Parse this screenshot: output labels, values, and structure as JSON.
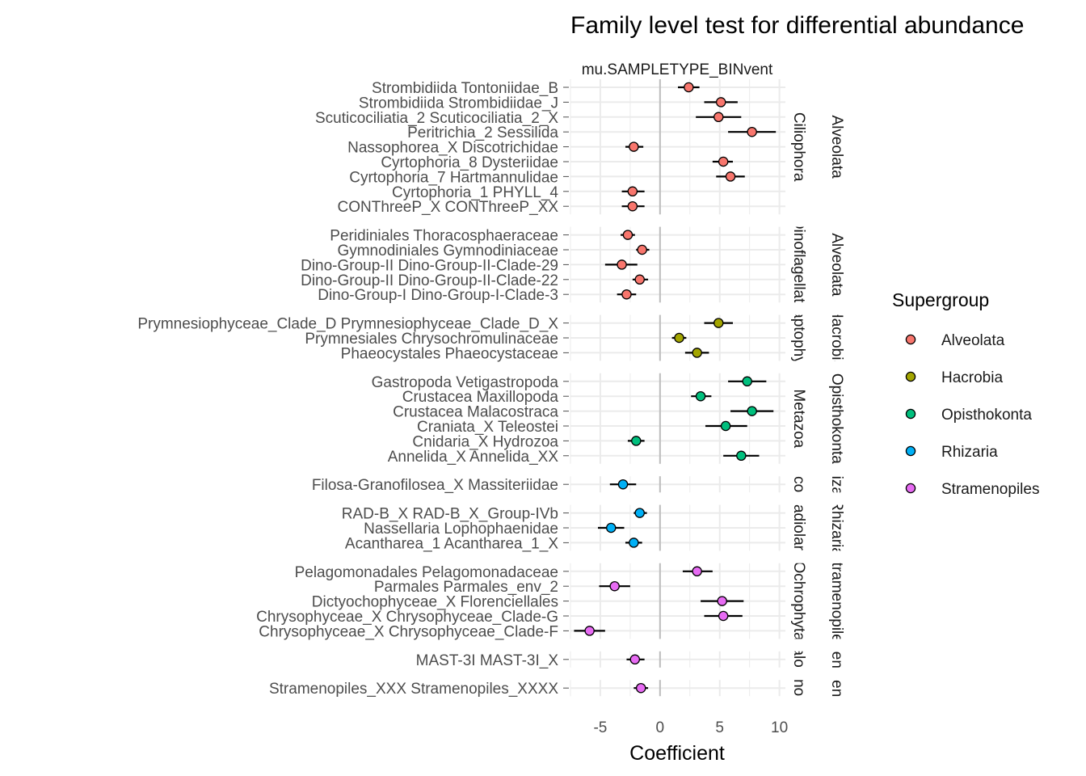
{
  "chart_data": {
    "type": "scatter",
    "subtype": "coefficient plot with error bars, faceted",
    "title": "Family level test for differential abundance",
    "facet_top_label": "mu.SAMPLETYPE_BINvent",
    "xlabel": "Coefficient",
    "ylabel": "",
    "xlim": [
      -7.5,
      10.5
    ],
    "xticks": [
      -5,
      0,
      5,
      10
    ],
    "vline_at": 0,
    "grid": true,
    "legend": {
      "title": "Supergroup",
      "placement": "right",
      "entries": [
        {
          "name": "Alveolata",
          "color": "#F8766D"
        },
        {
          "name": "Hacrobia",
          "color": "#A3A500"
        },
        {
          "name": "Opisthokonta",
          "color": "#00BF7D"
        },
        {
          "name": "Rhizaria",
          "color": "#00B0F6"
        },
        {
          "name": "Stramenopiles",
          "color": "#E76BF3"
        }
      ]
    },
    "panels": [
      {
        "division": "Ciliophora",
        "supergroup": "Alveolata",
        "rows": [
          {
            "label": "Strombidiida Tontoniidae_B",
            "coef": 2.4,
            "low": 1.5,
            "high": 3.3
          },
          {
            "label": "Strombidiida Strombidiidae_J",
            "coef": 5.1,
            "low": 3.7,
            "high": 6.5
          },
          {
            "label": "Scuticociliatia_2 Scuticociliatia_2_X",
            "coef": 4.9,
            "low": 3.0,
            "high": 6.8
          },
          {
            "label": "Peritrichia_2 Sessilida",
            "coef": 7.7,
            "low": 5.7,
            "high": 9.7
          },
          {
            "label": "Nassophorea_X Discotrichidae",
            "coef": -2.2,
            "low": -2.9,
            "high": -1.4
          },
          {
            "label": "Cyrtophoria_8 Dysteriidae",
            "coef": 5.3,
            "low": 4.4,
            "high": 6.1
          },
          {
            "label": "Cyrtophoria_7 Hartmannulidae",
            "coef": 5.9,
            "low": 4.7,
            "high": 7.1
          },
          {
            "label": "Cyrtophoria_1 PHYLL_4",
            "coef": -2.3,
            "low": -3.2,
            "high": -1.3
          },
          {
            "label": "CONThreeP_X CONThreeP_XX",
            "coef": -2.3,
            "low": -3.2,
            "high": -1.3
          }
        ]
      },
      {
        "division": "Dinoflagellata",
        "supergroup": "Alveolata",
        "rows": [
          {
            "label": "Peridiniales Thoracosphaeraceae",
            "coef": -2.7,
            "low": -3.3,
            "high": -2.1
          },
          {
            "label": "Gymnodiniales Gymnodiniaceae",
            "coef": -1.5,
            "low": -2.0,
            "high": -0.9
          },
          {
            "label": "Dino-Group-II Dino-Group-II-Clade-29",
            "coef": -3.2,
            "low": -4.6,
            "high": -1.9
          },
          {
            "label": "Dino-Group-II Dino-Group-II-Clade-22",
            "coef": -1.7,
            "low": -2.3,
            "high": -1.0
          },
          {
            "label": "Dino-Group-I Dino-Group-I-Clade-3",
            "coef": -2.8,
            "low": -3.6,
            "high": -2.0
          }
        ]
      },
      {
        "division": "Haptophyta",
        "supergroup": "Hacrobia",
        "rows": [
          {
            "label": "Prymnesiophyceae_Clade_D Prymnesiophyceae_Clade_D_X",
            "coef": 4.9,
            "low": 3.7,
            "high": 6.1
          },
          {
            "label": "Prymnesiales Chrysochromulinaceae",
            "coef": 1.6,
            "low": 1.0,
            "high": 2.2
          },
          {
            "label": "Phaeocystales Phaeocystaceae",
            "coef": 3.1,
            "low": 2.1,
            "high": 4.1
          }
        ]
      },
      {
        "division": "Metazoa",
        "supergroup": "Opisthokonta",
        "rows": [
          {
            "label": "Gastropoda Vetigastropoda",
            "coef": 7.3,
            "low": 5.7,
            "high": 8.9
          },
          {
            "label": "Crustacea Maxillopoda",
            "coef": 3.4,
            "low": 2.6,
            "high": 4.3
          },
          {
            "label": "Crustacea Malacostraca",
            "coef": 7.7,
            "low": 5.9,
            "high": 9.5
          },
          {
            "label": "Craniata_X Teleostei",
            "coef": 5.5,
            "low": 3.8,
            "high": 7.3
          },
          {
            "label": "Cnidaria_X Hydrozoa",
            "coef": -2.0,
            "low": -2.7,
            "high": -1.3
          },
          {
            "label": "Annelida_X Annelida_XX",
            "coef": 6.8,
            "low": 5.3,
            "high": 8.3
          }
        ]
      },
      {
        "division": "Cercozoa",
        "supergroup": "Rhizaria",
        "rows": [
          {
            "label": "Filosa-Granofilosea_X Massiteriidae",
            "coef": -3.1,
            "low": -4.2,
            "high": -2.0
          }
        ]
      },
      {
        "division": "Radiolaria",
        "supergroup": "Rhizaria",
        "rows": [
          {
            "label": "RAD-B_X RAD-B_X_Group-IVb",
            "coef": -1.7,
            "low": -2.2,
            "high": -1.1
          },
          {
            "label": "Nassellaria Lophophaenidae",
            "coef": -4.1,
            "low": -5.2,
            "high": -3.0
          },
          {
            "label": "Acantharea_1 Acantharea_1_X",
            "coef": -2.2,
            "low": -2.9,
            "high": -1.5
          }
        ]
      },
      {
        "division": "Ochrophyta",
        "supergroup": "Stramenopiles",
        "rows": [
          {
            "label": "Pelagomonadales Pelagomonadaceae",
            "coef": 3.1,
            "low": 1.9,
            "high": 4.4
          },
          {
            "label": "Parmales Parmales_env_2",
            "coef": -3.8,
            "low": -5.1,
            "high": -2.5
          },
          {
            "label": "Dictyochophyceae_X Florenciellales",
            "coef": 5.2,
            "low": 3.4,
            "high": 7.0
          },
          {
            "label": "Chrysophyceae_X Chrysophyceae_Clade-G",
            "coef": 5.3,
            "low": 3.7,
            "high": 6.9
          },
          {
            "label": "Chrysophyceae_X Chrysophyceae_Clade-F",
            "coef": -5.9,
            "low": -7.2,
            "high": -4.6
          }
        ]
      },
      {
        "division": "Opalozoa",
        "supergroup": "Stramenopiles",
        "rows": [
          {
            "label": "MAST-3I MAST-3I_X",
            "coef": -2.1,
            "low": -2.8,
            "high": -1.3
          }
        ]
      },
      {
        "division": "Stramenopiles_X",
        "supergroup": "Stramenopiles",
        "rows": [
          {
            "label": "Stramenopiles_XXX Stramenopiles_XXXX",
            "coef": -1.6,
            "low": -2.2,
            "high": -1.0
          }
        ]
      }
    ]
  }
}
